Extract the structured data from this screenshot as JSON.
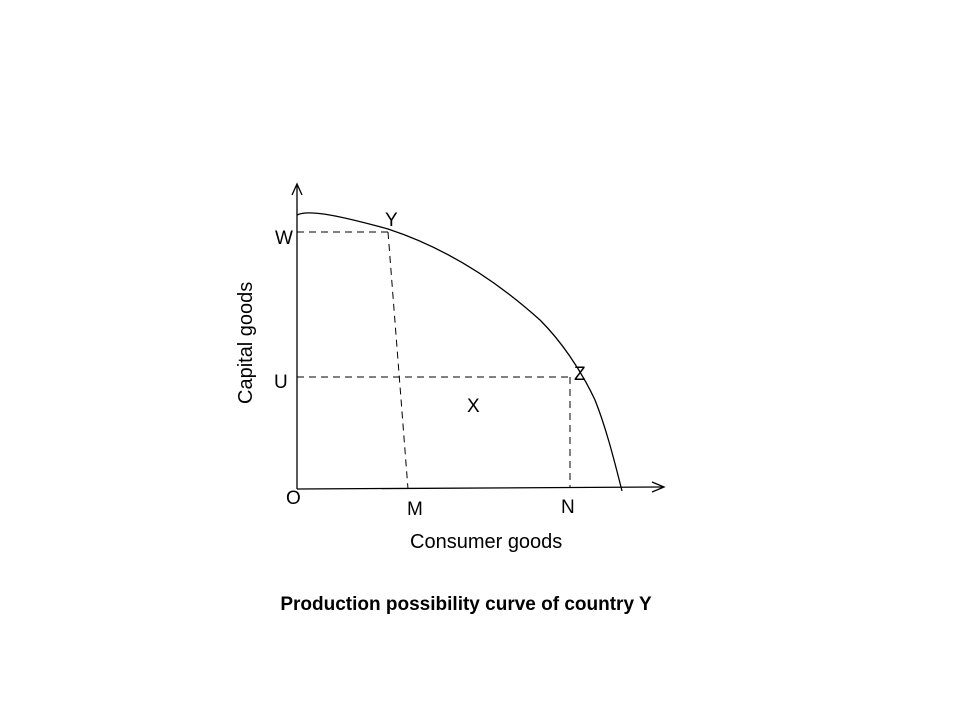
{
  "diagram": {
    "caption": "Production possibility curve of country Y",
    "x_axis_label": "Consumer goods",
    "y_axis_label": "Capital goods",
    "origin_label": "O",
    "y_axis_points": [
      "W",
      "U"
    ],
    "x_axis_points": [
      "M",
      "N"
    ],
    "curve_points": [
      "Y",
      "Z"
    ],
    "region_label": "X"
  }
}
